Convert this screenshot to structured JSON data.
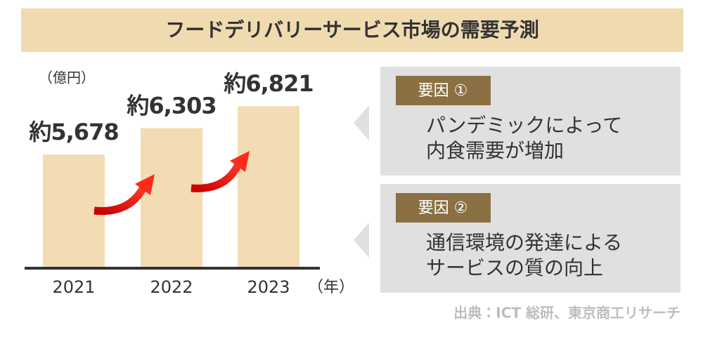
{
  "title": "フードデリバリーサービス市場の需要予測",
  "chart_data": {
    "type": "bar",
    "y_unit_label": "（億円）",
    "x_unit_label": "（年）",
    "categories": [
      "2021",
      "2022",
      "2023"
    ],
    "values": [
      5678,
      6303,
      6821
    ],
    "value_labels": [
      "約5,678",
      "約6,303",
      "約6,821"
    ],
    "color": "#f3dcb3",
    "ylim": [
      3000,
      8000
    ]
  },
  "factors": [
    {
      "tag": "要因 ①",
      "lines": [
        "パンデミックによって",
        "内食需要が増加"
      ]
    },
    {
      "tag": "要因 ②",
      "lines": [
        "通信環境の発達による",
        "サービスの質の向上"
      ]
    }
  ],
  "source": "出典：ICT 総研、東京商工リサーチ"
}
